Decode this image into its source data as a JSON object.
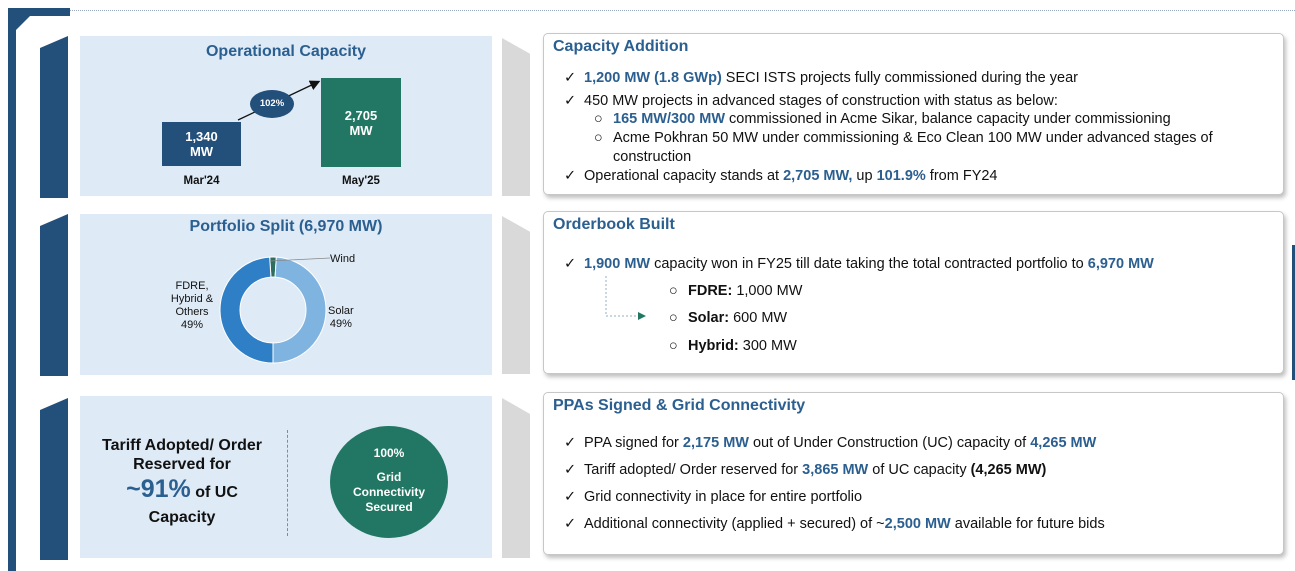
{
  "operational": {
    "title": "Operational Capacity",
    "bars": [
      {
        "label": "Mar'24",
        "value": 1340,
        "value_text": "1,340",
        "unit": "MW",
        "color": "#234f7b"
      },
      {
        "label": "May'25",
        "value": 2705,
        "value_text": "2,705",
        "unit": "MW",
        "color": "#217763"
      }
    ],
    "growth": "102%"
  },
  "portfolio": {
    "title": "Portfolio Split (6,970 MW)",
    "slices": [
      {
        "name": "Wind",
        "pct": 2,
        "color": "#2d6e5e"
      },
      {
        "name": "Solar",
        "pct": 49,
        "label_line1": "Solar",
        "label_line2": "49%",
        "color": "#7fb4e0"
      },
      {
        "name": "FDRE, Hybrid & Others",
        "pct": 49,
        "label_lines": [
          "FDRE,",
          "Hybrid &",
          "Others",
          "49%"
        ],
        "color": "#2f7fc6"
      }
    ],
    "wind_label": "Wind"
  },
  "tariff": {
    "line1": "Tariff Adopted/ Order",
    "line2": "Reserved for",
    "big": "~91%",
    "of_uc": " of UC",
    "line4": "Capacity"
  },
  "grid": {
    "pct": "100%",
    "line1": "Grid",
    "line2": "Connectivity",
    "line3": "Secured"
  },
  "capacity_addition": {
    "title": "Capacity Addition",
    "b1": {
      "hl": "1,200 MW (1.8 GWp)",
      "rest": " SECI ISTS projects fully commissioned during the year"
    },
    "b2": "450 MW projects in advanced stages of construction with status as below:",
    "s1": {
      "hl": "165 MW/300 MW",
      "rest": " commissioned in Acme Sikar, balance capacity under commissioning"
    },
    "s2a": "Acme Pokhran 50 MW under commissioning & Eco Clean 100 MW under advanced stages of",
    "s2b": "construction",
    "b3": {
      "pre": "Operational capacity stands at ",
      "hl1": "2,705 MW,",
      "mid": " up ",
      "hl2": "101.9%",
      "post": " from FY24"
    }
  },
  "orderbook": {
    "title": "Orderbook Built",
    "b1": {
      "hl1": "1,900 MW",
      "mid": " capacity won in FY25 till date taking the total contracted portfolio to ",
      "hl2": "6,970 MW"
    },
    "items": [
      {
        "label": "FDRE:",
        "value": " 1,000 MW"
      },
      {
        "label": "Solar:",
        "value": " 600 MW"
      },
      {
        "label": "Hybrid:",
        "value": " 300 MW"
      }
    ]
  },
  "ppa": {
    "title": "PPAs Signed & Grid Connectivity",
    "b1": {
      "pre": "PPA signed for ",
      "hl1": "2,175 MW",
      "mid": " out of Under Construction (UC) capacity of ",
      "hl2": "4,265 MW"
    },
    "b2": {
      "pre": "Tariff adopted/ Order reserved for ",
      "hl1": "3,865 MW",
      "mid": " of UC capacity ",
      "bd": "(4,265 MW)"
    },
    "b3": "Grid connectivity in place for entire portfolio",
    "b4": {
      "pre": "Additional connectivity (applied + secured) of ~",
      "hl": "2,500 MW",
      "post": " available for future bids"
    }
  },
  "check_glyph": "✓",
  "circle_glyph": "○"
}
